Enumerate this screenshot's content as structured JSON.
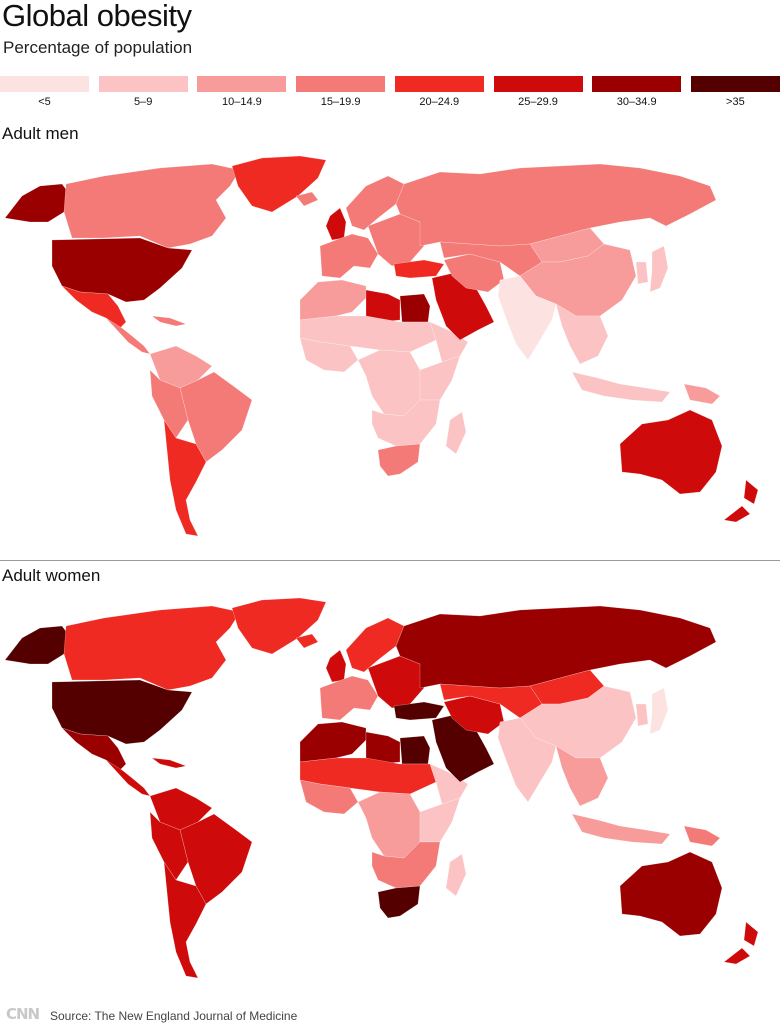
{
  "title": "Global obesity",
  "subtitle": "Percentage of population",
  "legend": {
    "items": [
      {
        "label": "<5",
        "color": "#fde2e2"
      },
      {
        "label": "5–9",
        "color": "#fbc3c3"
      },
      {
        "label": "10–14.9",
        "color": "#f79c9b"
      },
      {
        "label": "15–19.9",
        "color": "#f47a78"
      },
      {
        "label": "20–24.9",
        "color": "#ee2a22"
      },
      {
        "label": "25–29.9",
        "color": "#cf0a0a"
      },
      {
        "label": "30–34.9",
        "color": "#9a0000"
      },
      {
        "label": ">35",
        "color": "#550000"
      }
    ]
  },
  "panels": [
    {
      "title": "Adult men",
      "regions": {
        "alaska": 6,
        "canada": 3,
        "greenland": 4,
        "usa": 6,
        "mexico": 4,
        "central_america": 3,
        "caribbean": 3,
        "south_america_north": 2,
        "brazil": 3,
        "andes": 3,
        "argentina_chile": 4,
        "uk": 5,
        "iceland": 3,
        "scandinavia": 3,
        "europe_west": 3,
        "europe_east": 3,
        "russia": 3,
        "turkey": 4,
        "north_africa": 2,
        "libya": 5,
        "egypt": 6,
        "sahel": 1,
        "west_africa": 1,
        "central_africa": 1,
        "east_africa": 1,
        "horn_of_africa": 1,
        "southern_africa": 1,
        "south_africa": 3,
        "madagascar": 1,
        "arabia": 5,
        "iran": 3,
        "central_asia": 3,
        "mongolia": 2,
        "china": 2,
        "india": 0,
        "southeast_asia": 1,
        "indonesia": 1,
        "japan": 1,
        "korea": 1,
        "australia": 5,
        "new_zealand": 5,
        "png": 2
      }
    },
    {
      "title": "Adult women",
      "regions": {
        "alaska": 7,
        "canada": 4,
        "greenland": 4,
        "usa": 7,
        "mexico": 6,
        "central_america": 5,
        "caribbean": 5,
        "south_america_north": 5,
        "brazil": 5,
        "andes": 5,
        "argentina_chile": 5,
        "uk": 5,
        "iceland": 4,
        "scandinavia": 4,
        "europe_west": 3,
        "europe_east": 5,
        "russia": 6,
        "turkey": 7,
        "north_africa": 6,
        "libya": 6,
        "egypt": 7,
        "sahel": 4,
        "west_africa": 3,
        "central_africa": 2,
        "east_africa": 1,
        "horn_of_africa": 1,
        "southern_africa": 3,
        "south_africa": 7,
        "madagascar": 1,
        "arabia": 7,
        "iran": 5,
        "central_asia": 4,
        "mongolia": 4,
        "china": 1,
        "india": 1,
        "southeast_asia": 2,
        "indonesia": 2,
        "japan": 0,
        "korea": 1,
        "australia": 6,
        "new_zealand": 5,
        "png": 3
      }
    }
  ],
  "source": "Source: The New England Journal of Medicine",
  "logo": "CNN"
}
